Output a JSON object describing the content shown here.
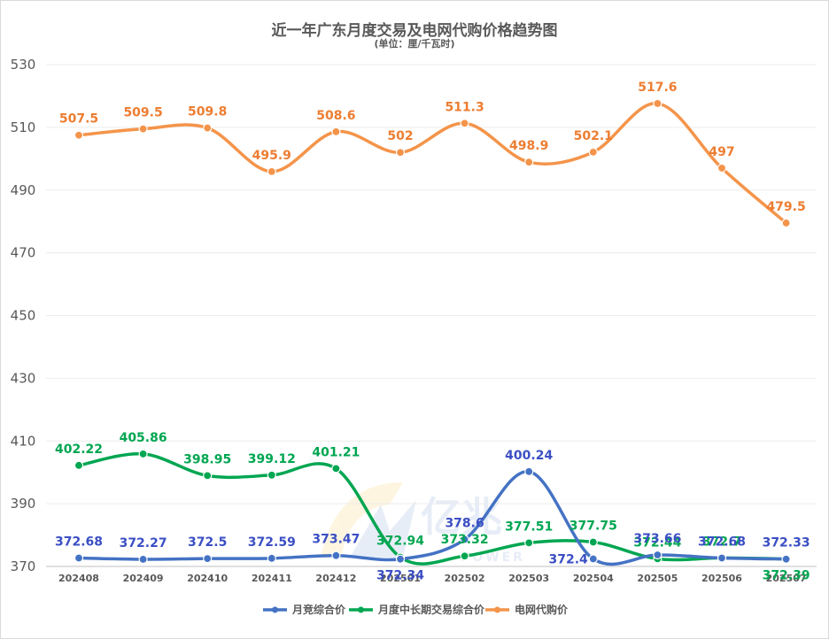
{
  "chart_data": {
    "type": "line",
    "title": "近一年广东月度交易及电网代购价格趋势图",
    "subtitle": "(单位：厘/千瓦时)",
    "xlabel": "",
    "ylabel": "",
    "ylim": [
      370,
      530
    ],
    "yticks": [
      370,
      390,
      410,
      430,
      450,
      470,
      490,
      510,
      530
    ],
    "categories": [
      "202408",
      "202409",
      "202410",
      "202411",
      "202412",
      "202501",
      "202502",
      "202503",
      "202504",
      "202505",
      "202506",
      "202507"
    ],
    "series": [
      {
        "name": "月竞综合价",
        "color": "#4472c4",
        "labelColor": "#3b4fc4",
        "values": [
          372.68,
          372.27,
          372.5,
          372.59,
          373.47,
          372.34,
          378.6,
          400.24,
          372.4,
          373.66,
          372.68,
          372.33
        ],
        "labelPos": [
          "above",
          "above",
          "above",
          "above",
          "above",
          "below",
          "above",
          "above",
          "left",
          "above",
          "above",
          "above"
        ]
      },
      {
        "name": "月度中长期交易综合价",
        "color": "#00a651",
        "labelColor": "#00a651",
        "values": [
          402.22,
          405.86,
          398.95,
          399.12,
          401.21,
          372.94,
          373.32,
          377.51,
          377.75,
          372.44,
          372.7,
          372.39
        ],
        "labelPos": [
          "above",
          "above",
          "above",
          "above",
          "above",
          "above",
          "above",
          "above",
          "above",
          "above",
          "above",
          "below"
        ]
      },
      {
        "name": "电网代购价",
        "color": "#f4944a",
        "labelColor": "#ed7d31",
        "values": [
          507.5,
          509.5,
          509.8,
          495.9,
          508.6,
          502,
          511.3,
          498.9,
          502.1,
          517.6,
          497,
          479.5
        ],
        "labelPos": [
          "above",
          "above",
          "above",
          "above",
          "above",
          "above",
          "above",
          "above",
          "above",
          "above",
          "above",
          "above"
        ]
      }
    ],
    "legend_position": "bottom-center",
    "grid": true
  },
  "watermark": {
    "text": "亿兆",
    "subtext": "POWER"
  }
}
